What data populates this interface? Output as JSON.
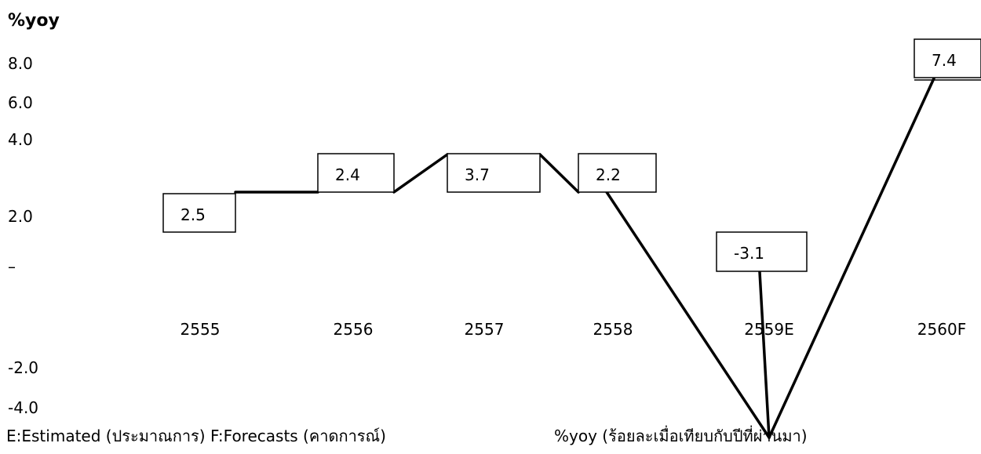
{
  "unit_label": "%yoy",
  "notes": {
    "estimated_forecast": "E:Estimated (ประมาณการ) F:Forecasts (คาดการณ์)",
    "yoy": "%yoy  (ร้อยละเมื่อเทียบกับปีที่ผ่านมา)"
  },
  "y_tick_labels": [
    "8.0",
    "6.0",
    "4.0",
    "2.0",
    "–",
    "-2.0",
    "-4.0"
  ],
  "chart_data": {
    "type": "line",
    "ylabel": "%yoy",
    "categories": [
      "2555",
      "2556",
      "2557",
      "2558",
      "2559E",
      "2560F"
    ],
    "series": [
      {
        "values": [
          2.5,
          2.4,
          3.7,
          2.2,
          -3.1,
          7.4
        ],
        "data_labels": [
          "2.5",
          "2.4",
          "3.7",
          "2.2",
          "-3.1",
          "7.4"
        ]
      }
    ],
    "colors": {
      "line": "#000000",
      "label_box": "#000000"
    }
  }
}
